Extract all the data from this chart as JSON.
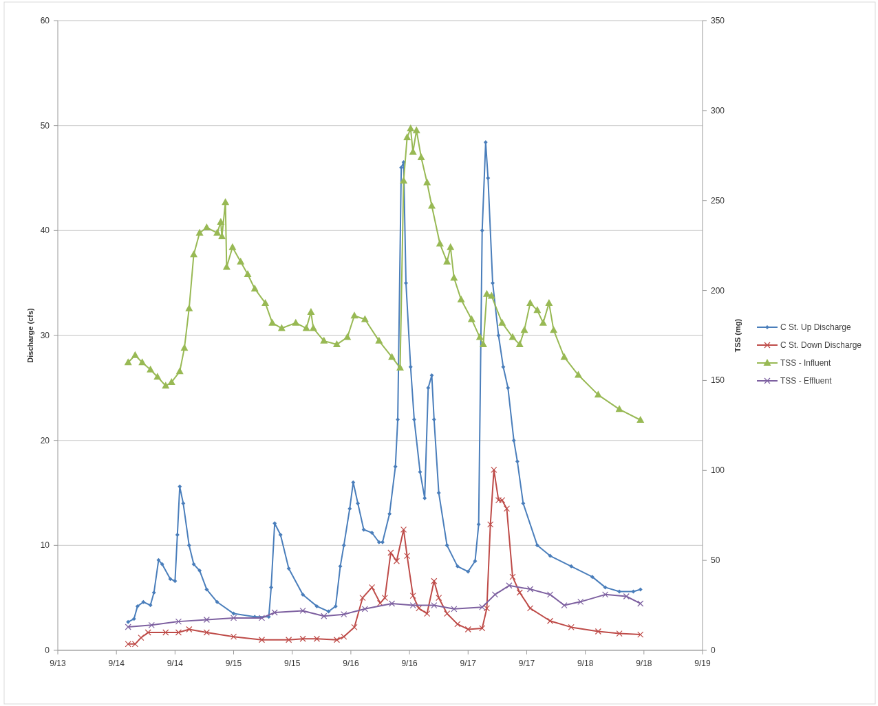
{
  "chart_data": {
    "type": "line",
    "ylabel": "Discharge (cfs)",
    "y2label": "TSS (mg)",
    "xlim": [
      "--09-13T12:00",
      "--09-19T00:00"
    ],
    "xticks": [
      {
        "value": "--09-13T12:00",
        "label": "9/13"
      },
      {
        "value": "--09-14T00:00",
        "label": "9/14"
      },
      {
        "value": "--09-14T12:00",
        "label": "9/14"
      },
      {
        "value": "--09-15T00:00",
        "label": "9/15"
      },
      {
        "value": "--09-15T12:00",
        "label": "9/15"
      },
      {
        "value": "--09-16T00:00",
        "label": "9/16"
      },
      {
        "value": "--09-16T12:00",
        "label": "9/16"
      },
      {
        "value": "--09-17T00:00",
        "label": "9/17"
      },
      {
        "value": "--09-17T12:00",
        "label": "9/17"
      },
      {
        "value": "--09-18T00:00",
        "label": "9/18"
      },
      {
        "value": "--09-18T12:00",
        "label": "9/18"
      },
      {
        "value": "--09-19T00:00",
        "label": "9/19"
      }
    ],
    "ylim": [
      0,
      60
    ],
    "yticks": [
      0,
      10,
      20,
      30,
      40,
      50,
      60
    ],
    "y2lim": [
      0,
      350
    ],
    "y2ticks": [
      0,
      50,
      100,
      150,
      200,
      250,
      300,
      350
    ],
    "grid": "y",
    "legend": "right",
    "series": [
      {
        "name": "C St. Up Discharge",
        "color": "#4a7ebb",
        "marker": "diamond",
        "x": [
          "--09-14T02:24",
          "--09-14T03:36",
          "--09-14T04:19",
          "--09-14T05:31",
          "--09-14T06:58",
          "--09-14T07:41",
          "--09-14T08:38",
          "--09-14T09:22",
          "--09-14T11:02",
          "--09-14T12:00",
          "--09-14T12:29",
          "--09-14T12:58",
          "--09-14T13:41",
          "--09-14T14:53",
          "--09-14T15:50",
          "--09-14T17:02",
          "--09-14T18:29",
          "--09-14T20:38",
          "--09-15T00:00",
          "--09-15T04:19",
          "--09-15T07:12",
          "--09-15T07:41",
          "--09-15T08:24",
          "--09-15T09:36",
          "--09-15T11:17",
          "--09-15T14:10",
          "--09-15T17:02",
          "--09-15T19:26",
          "--09-15T20:53",
          "--09-15T21:50",
          "--09-15T22:34",
          "--09-15T23:46",
          "--09-16T00:29",
          "--09-16T01:26",
          "--09-16T02:38",
          "--09-16T04:19",
          "--09-16T05:46",
          "--09-16T06:29",
          "--09-16T07:55",
          "--09-16T09:07",
          "--09-16T09:36",
          "--09-16T10:19",
          "--09-16T10:48",
          "--09-16T11:17",
          "--09-16T12:14",
          "--09-16T12:58",
          "--09-16T14:10",
          "--09-16T15:07",
          "--09-16T15:50",
          "--09-16T16:34",
          "--09-16T17:02",
          "--09-16T18:00",
          "--09-16T19:41",
          "--09-16T21:50",
          "--09-17T00:00",
          "--09-17T01:26",
          "--09-17T02:10",
          "--09-17T02:53",
          "--09-17T03:36",
          "--09-17T04:05",
          "--09-17T05:02",
          "--09-17T06:14",
          "--09-17T07:12",
          "--09-17T08:10",
          "--09-17T09:22",
          "--09-17T10:05",
          "--09-17T11:17",
          "--09-17T14:10",
          "--09-17T16:48",
          "--09-17T21:07",
          "--09-18T01:26",
          "--09-18T04:05",
          "--09-18T06:58",
          "--09-18T09:50",
          "--09-18T11:17"
        ],
        "values": [
          2.7,
          3.0,
          4.2,
          4.6,
          4.3,
          5.5,
          8.6,
          8.2,
          6.8,
          6.6,
          11,
          15.6,
          14,
          10,
          8.2,
          7.6,
          5.8,
          4.6,
          3.5,
          3.2,
          3.2,
          6,
          12.1,
          11,
          7.8,
          5.3,
          4.2,
          3.7,
          4.2,
          8,
          10,
          13.5,
          16,
          14,
          11.5,
          11.2,
          10.3,
          10.3,
          13,
          17.5,
          22,
          46,
          46.5,
          35,
          27,
          22,
          17,
          14.5,
          25,
          26.2,
          22,
          15,
          10,
          8,
          7.5,
          8.5,
          12,
          40,
          48.4,
          45,
          35,
          30,
          27,
          25,
          20,
          18,
          14,
          10,
          9,
          8,
          7,
          6,
          5.6,
          5.6,
          5.8
        ]
      },
      {
        "name": "C St. Down Discharge",
        "color": "#be4b48",
        "marker": "cross",
        "x": [
          "--09-14T02:24",
          "--09-14T03:50",
          "--09-14T05:02",
          "--09-14T06:29",
          "--09-14T10:05",
          "--09-14T12:43",
          "--09-14T14:53",
          "--09-14T18:29",
          "--09-15T00:00",
          "--09-15T05:46",
          "--09-15T11:17",
          "--09-15T14:10",
          "--09-15T17:02",
          "--09-15T21:07",
          "--09-15T22:34",
          "--09-16T00:43",
          "--09-16T02:24",
          "--09-16T04:19",
          "--09-16T06:00",
          "--09-16T06:58",
          "--09-16T08:10",
          "--09-16T09:22",
          "--09-16T10:48",
          "--09-16T11:31",
          "--09-16T12:43",
          "--09-16T13:55",
          "--09-16T15:36",
          "--09-16T17:02",
          "--09-16T18:00",
          "--09-16T19:41",
          "--09-16T21:50",
          "--09-17T00:00",
          "--09-17T02:53",
          "--09-17T03:50",
          "--09-17T04:34",
          "--09-17T05:17",
          "--09-17T06:14",
          "--09-17T06:58",
          "--09-17T07:55",
          "--09-17T09:07",
          "--09-17T10:34",
          "--09-17T12:43",
          "--09-17T16:48",
          "--09-17T21:07",
          "--09-18T02:38",
          "--09-18T06:58",
          "--09-18T11:17"
        ],
        "values": [
          0.6,
          0.6,
          1.2,
          1.7,
          1.7,
          1.7,
          2.0,
          1.7,
          1.3,
          1.0,
          1.0,
          1.1,
          1.1,
          1.0,
          1.3,
          2.2,
          5.0,
          6.0,
          4.5,
          5,
          9.3,
          8.5,
          11.5,
          9,
          5.2,
          4.0,
          3.5,
          6.6,
          5,
          3.5,
          2.5,
          2.0,
          2.1,
          4,
          12,
          17.2,
          14.3,
          14.3,
          13.5,
          7,
          5.5,
          4,
          2.8,
          2.2,
          1.8,
          1.6,
          1.5
        ]
      },
      {
        "name": "TSS - Influent",
        "color": "#98b954",
        "marker": "triangle",
        "axis": "y2",
        "x": [
          "--09-14T02:24",
          "--09-14T03:50",
          "--09-14T05:17",
          "--09-14T06:58",
          "--09-14T08:24",
          "--09-14T10:05",
          "--09-14T11:17",
          "--09-14T12:58",
          "--09-14T13:55",
          "--09-14T14:53",
          "--09-14T15:50",
          "--09-14T17:02",
          "--09-14T18:29",
          "--09-14T20:38",
          "--09-14T21:22",
          "--09-14T21:36",
          "--09-14T22:19",
          "--09-14T22:34",
          "--09-14T23:46",
          "--09-15T01:26",
          "--09-15T02:53",
          "--09-15T04:19",
          "--09-15T06:29",
          "--09-15T07:55",
          "--09-15T09:50",
          "--09-15T12:43",
          "--09-15T14:53",
          "--09-15T15:50",
          "--09-15T16:19",
          "--09-15T18:29",
          "--09-15T21:07",
          "--09-15T23:17",
          "--09-16T00:43",
          "--09-16T02:53",
          "--09-16T05:46",
          "--09-16T08:24",
          "--09-16T10:05",
          "--09-16T10:48",
          "--09-16T11:31",
          "--09-16T12:14",
          "--09-16T12:43",
          "--09-16T13:26",
          "--09-16T14:24",
          "--09-16T15:36",
          "--09-16T16:34",
          "--09-16T18:14",
          "--09-16T19:41",
          "--09-16T20:24",
          "--09-16T21:07",
          "--09-16T22:34",
          "--09-17T00:43",
          "--09-17T02:24",
          "--09-17T03:07",
          "--09-17T03:50",
          "--09-17T04:48",
          "--09-17T06:58",
          "--09-17T09:07",
          "--09-17T10:34",
          "--09-17T11:31",
          "--09-17T12:43",
          "--09-17T14:10",
          "--09-17T15:22",
          "--09-17T16:34",
          "--09-17T17:31",
          "--09-17T19:41",
          "--09-17T22:34",
          "--09-18T02:38",
          "--09-18T06:58",
          "--09-18T11:17"
        ],
        "values": [
          160,
          164,
          160,
          156,
          152,
          147,
          149,
          155,
          168,
          190,
          220,
          232,
          235,
          232,
          238,
          230,
          249,
          213,
          224,
          216,
          209,
          201,
          193,
          182,
          179,
          182,
          179,
          188,
          179,
          172,
          170,
          174,
          186,
          184,
          172,
          163,
          157,
          261,
          285,
          290,
          277,
          289,
          274,
          260,
          247,
          226,
          216,
          224,
          207,
          195,
          184,
          174,
          170,
          198,
          197,
          182,
          174,
          170,
          178,
          193,
          189,
          182,
          193,
          178,
          163,
          153,
          142,
          134,
          128
        ]
      },
      {
        "name": "TSS - Effluent",
        "color": "#7d60a0",
        "marker": "cross",
        "axis": "y2",
        "x": [
          "--09-14T02:24",
          "--09-14T07:12",
          "--09-14T12:43",
          "--09-14T18:29",
          "--09-15T00:00",
          "--09-15T05:46",
          "--09-15T08:24",
          "--09-15T14:10",
          "--09-15T18:29",
          "--09-15T22:34",
          "--09-16T02:53",
          "--09-16T08:24",
          "--09-16T12:43",
          "--09-16T17:02",
          "--09-16T21:07",
          "--09-17T02:53",
          "--09-17T05:31",
          "--09-17T08:24",
          "--09-17T12:43",
          "--09-17T16:48",
          "--09-17T19:41",
          "--09-17T23:02",
          "--09-18T04:05",
          "--09-18T08:24",
          "--09-18T11:17"
        ],
        "values": [
          13,
          14,
          16,
          17,
          18,
          18,
          21,
          22,
          19,
          20,
          23,
          26,
          25,
          25,
          23,
          24,
          31,
          36,
          34,
          31,
          25,
          27,
          31,
          30,
          26
        ]
      }
    ]
  }
}
